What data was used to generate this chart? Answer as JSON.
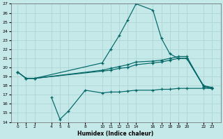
{
  "xlabel": "Humidex (Indice chaleur)",
  "bg_color": "#c5e8e8",
  "grid_color": "#b0d8d8",
  "line_color": "#006666",
  "ylim": [
    14,
    27
  ],
  "yticks": [
    14,
    15,
    16,
    17,
    18,
    19,
    20,
    21,
    22,
    23,
    24,
    25,
    26,
    27
  ],
  "xtick_labels": [
    "0",
    "1",
    "2",
    "4",
    "5",
    "6",
    "8",
    "10",
    "11",
    "12",
    "13",
    "14",
    "16",
    "17",
    "18",
    "19",
    "20",
    "22",
    "23"
  ],
  "xtick_positions": [
    0,
    1,
    2,
    4,
    5,
    6,
    8,
    10,
    11,
    12,
    13,
    14,
    16,
    17,
    18,
    19,
    20,
    22,
    23
  ],
  "xlim": [
    -0.8,
    24
  ],
  "line1_x": [
    0,
    1,
    2,
    10,
    11,
    12,
    13,
    14,
    16,
    17,
    18,
    19,
    20,
    22,
    23
  ],
  "line1_y": [
    19.5,
    18.8,
    18.8,
    20.5,
    22.0,
    23.5,
    25.2,
    27.0,
    26.3,
    23.2,
    21.5,
    21.0,
    21.0,
    18.0,
    17.8
  ],
  "line2_x": [
    0,
    1,
    2,
    10,
    11,
    12,
    13,
    14,
    16,
    17,
    18,
    19,
    20,
    22,
    23
  ],
  "line2_y": [
    19.5,
    18.8,
    18.8,
    19.7,
    19.9,
    20.1,
    20.3,
    20.6,
    20.7,
    20.8,
    21.0,
    21.2,
    21.2,
    17.9,
    17.7
  ],
  "line3_x": [
    0,
    1,
    2,
    10,
    11,
    12,
    13,
    14,
    16,
    17,
    18,
    19,
    20,
    22,
    23
  ],
  "line3_y": [
    19.5,
    18.8,
    18.8,
    19.6,
    19.7,
    19.9,
    20.0,
    20.3,
    20.5,
    20.6,
    20.8,
    21.0,
    21.0,
    17.9,
    17.7
  ],
  "line4_x": [
    4,
    5,
    6,
    8,
    10,
    11,
    12,
    13,
    14,
    16,
    17,
    18,
    19,
    20,
    22,
    23
  ],
  "line4_y": [
    16.7,
    14.3,
    15.2,
    17.5,
    17.2,
    17.3,
    17.3,
    17.4,
    17.5,
    17.5,
    17.6,
    17.6,
    17.7,
    17.7,
    17.7,
    17.7
  ]
}
